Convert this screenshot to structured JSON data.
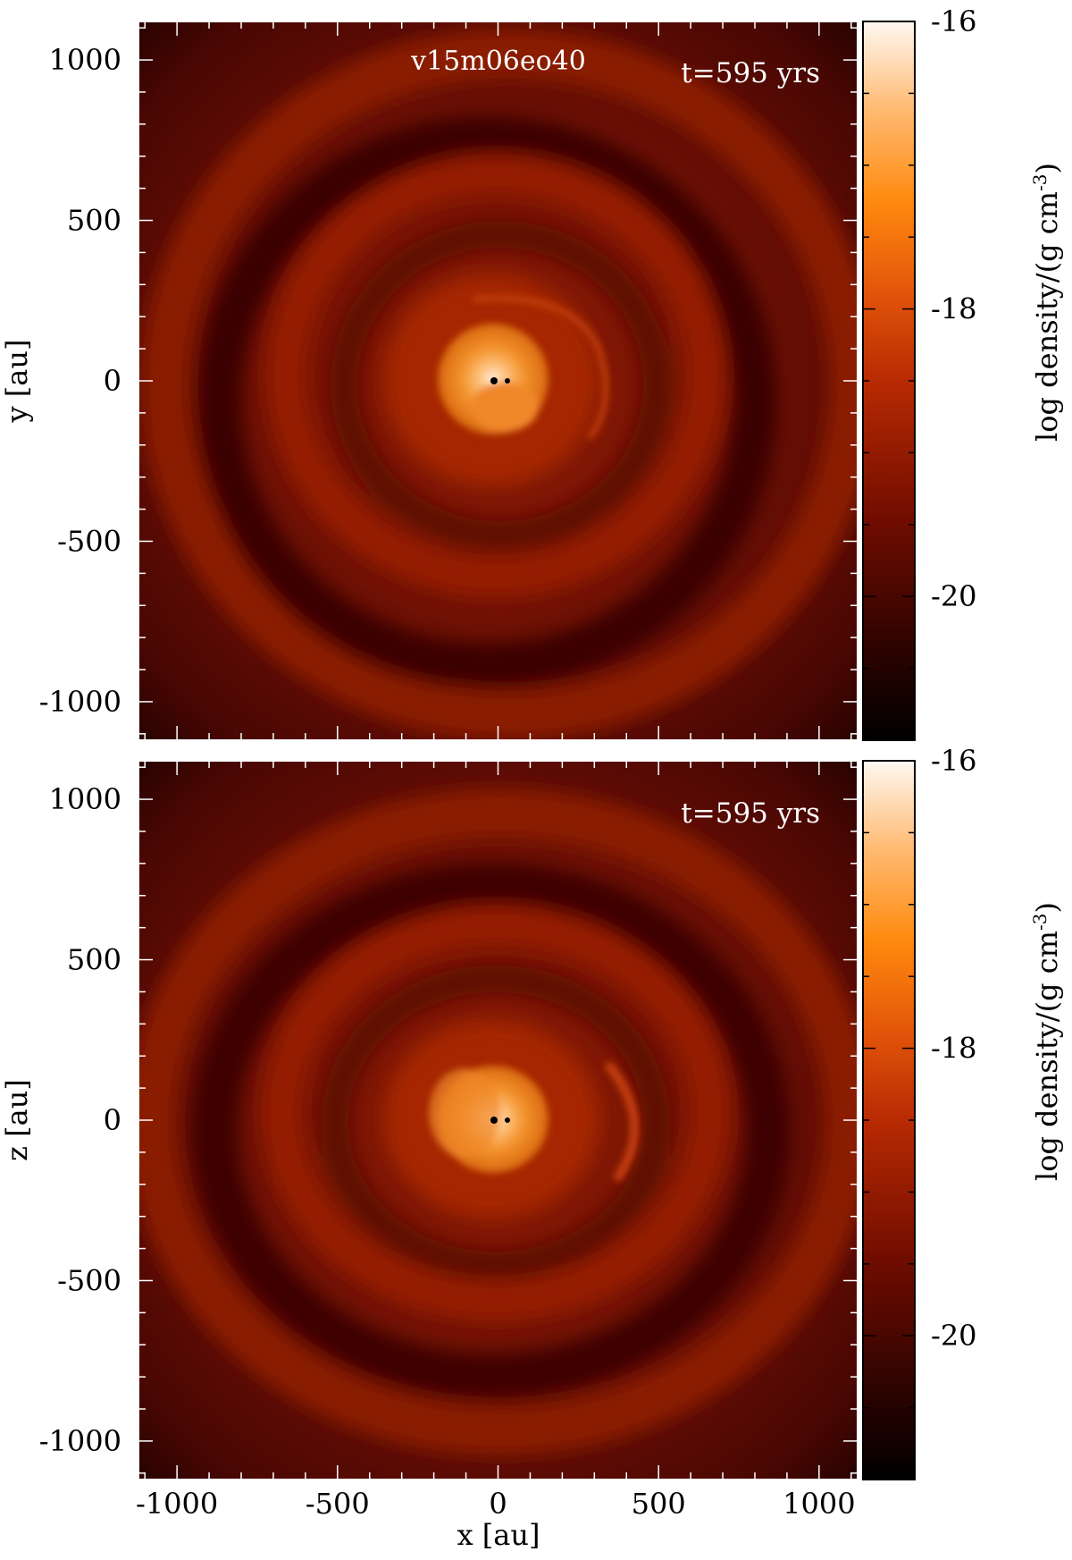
{
  "panels": [
    {
      "label": "v15m06eo40",
      "time": "t=595 yrs",
      "ylabel": "y [au]",
      "colorbar_label": "log density/(g cm",
      "colorbar_label_sup": "-3",
      "colorbar_label_end": ")",
      "colorbar_ticks": [
        "-16",
        "-18",
        "-20"
      ]
    },
    {
      "label": "",
      "time": "t=595 yrs",
      "ylabel": "z [au]",
      "colorbar_label": "log density/(g cm",
      "colorbar_label_sup": "-3",
      "colorbar_label_end": ")",
      "colorbar_ticks": [
        "-16",
        "-18",
        "-20"
      ]
    }
  ],
  "xlabel": "x [au]",
  "chart_data": [
    {
      "type": "heatmap",
      "title": "v15m06eo40",
      "annotation": "t=595 yrs",
      "xlabel": "",
      "ylabel": "y [au]",
      "xlim": [
        -1120,
        1120
      ],
      "ylim": [
        -1120,
        1120
      ],
      "xticks": [
        -1000,
        -500,
        0,
        500,
        1000
      ],
      "yticks": [
        -1000,
        -500,
        0,
        500,
        1000
      ],
      "colorbar": {
        "label": "log density/(g cm-3)",
        "range": [
          -21,
          -16
        ],
        "ticks": [
          -16,
          -18,
          -20
        ]
      },
      "point_sources": [
        {
          "x": 0,
          "y": 0
        },
        {
          "x": 45,
          "y": 0
        }
      ]
    },
    {
      "type": "heatmap",
      "title": "",
      "annotation": "t=595 yrs",
      "xlabel": "x [au]",
      "ylabel": "z [au]",
      "xlim": [
        -1120,
        1120
      ],
      "ylim": [
        -1120,
        1120
      ],
      "xticks": [
        -1000,
        -500,
        0,
        500,
        1000
      ],
      "yticks": [
        -1000,
        -500,
        0,
        500,
        1000
      ],
      "colorbar": {
        "label": "log density/(g cm-3)",
        "range": [
          -21,
          -16
        ],
        "ticks": [
          -16,
          -18,
          -20
        ]
      },
      "point_sources": [
        {
          "x": 0,
          "y": 0
        },
        {
          "x": 45,
          "y": 0
        }
      ]
    }
  ]
}
